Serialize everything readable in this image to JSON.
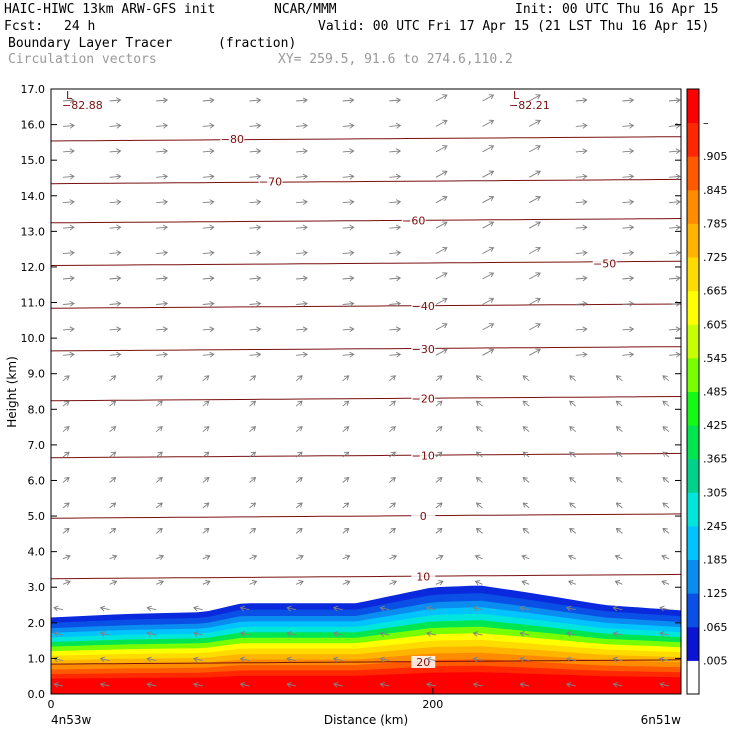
{
  "header": {
    "model": "HAIC-HIWC 13km ARW-GFS init",
    "org": "NCAR/MMM",
    "init": "Init: 00 UTC Thu 16 Apr 15",
    "fcst_label": "Fcst:",
    "fcst_value": "24 h",
    "valid": "Valid: 00 UTC Fri 17 Apr 15 (21 LST Thu 16 Apr 15)",
    "field": "Boundary Layer Tracer",
    "field_units": "(fraction)",
    "overlay": "Circulation vectors",
    "xy": "XY= 259.5, 91.6 to 274.6,110.2"
  },
  "axes": {
    "ylabel": "Height (km)",
    "xlabel": "Distance (km)",
    "x_left_label": "4n53w",
    "x_right_label": "6n51w",
    "y_ticks": [
      "0.0",
      "1.0",
      "2.0",
      "3.0",
      "4.0",
      "5.0",
      "6.0",
      "7.0",
      "8.0",
      "9.0",
      "10.0",
      "11.0",
      "12.0",
      "13.0",
      "14.0",
      "15.0",
      "16.0",
      "17.0"
    ],
    "x_ticks": [
      "0",
      "200"
    ]
  },
  "colorbar": {
    "labels": [
      ".005",
      ".065",
      ".125",
      ".185",
      ".245",
      ".305",
      ".365",
      ".425",
      ".485",
      ".545",
      ".605",
      ".665",
      ".725",
      ".785",
      ".845",
      ".905",
      "–"
    ],
    "colors": [
      "#ffffff",
      "#0a14d2",
      "#0a50e6",
      "#0a8cf0",
      "#00c3ff",
      "#00e6dc",
      "#00d28c",
      "#00e650",
      "#14fa14",
      "#78ff00",
      "#c8ff00",
      "#ffff00",
      "#ffdc00",
      "#ffb400",
      "#ff8c00",
      "#ff5a00",
      "#ff2800",
      "#ff0000"
    ]
  },
  "extremes": {
    "low_label": "L",
    "low_left_value": "−82.88",
    "low_right_value": "−82.21"
  },
  "chart_data": {
    "type": "heatmap",
    "title": "Boundary Layer Tracer (fraction)",
    "xlabel": "Distance (km)",
    "ylabel": "Height (km)",
    "ylim": [
      0,
      17
    ],
    "xlim": [
      0,
      330
    ],
    "tracer_top_km": [
      {
        "x": 0,
        "top": 2.15
      },
      {
        "x": 40,
        "top": 2.25
      },
      {
        "x": 80,
        "top": 2.3
      },
      {
        "x": 100,
        "top": 2.55
      },
      {
        "x": 160,
        "top": 2.55
      },
      {
        "x": 200,
        "top": 3.0
      },
      {
        "x": 225,
        "top": 3.05
      },
      {
        "x": 250,
        "top": 2.85
      },
      {
        "x": 290,
        "top": 2.5
      },
      {
        "x": 330,
        "top": 2.35
      }
    ],
    "temperature_contours_C": [
      {
        "label": "20",
        "height_km": 0.9
      },
      {
        "label": "10",
        "height_km": 3.3
      },
      {
        "label": "0",
        "height_km": 5.0
      },
      {
        "label": "−10",
        "height_km": 6.7
      },
      {
        "label": "−20",
        "height_km": 8.3
      },
      {
        "label": "−30",
        "height_km": 9.7
      },
      {
        "label": "−40",
        "height_km": 10.9
      },
      {
        "label": "−50",
        "height_km": 12.1
      },
      {
        "label": "−60",
        "height_km": 13.3
      },
      {
        "label": "−70",
        "height_km": 14.4
      },
      {
        "label": "−80",
        "height_km": 15.6
      }
    ]
  }
}
